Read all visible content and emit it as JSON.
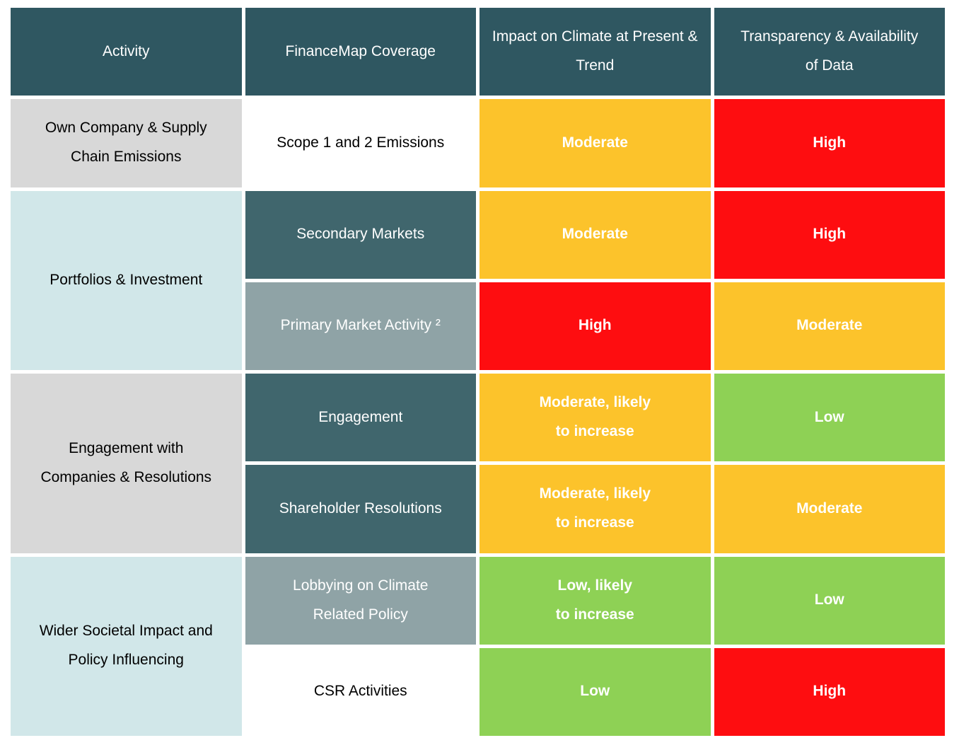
{
  "table": {
    "headers": [
      "Activity",
      "FinanceMap Coverage",
      "Impact on Climate at Present &\nTrend",
      "Transparency & Availability\nof Data"
    ],
    "groups": [
      {
        "activity": "Own Company & Supply\nChain Emissions",
        "rows": [
          {
            "coverage": "Scope 1 and 2 Emissions",
            "impact": "Moderate",
            "impact_level": "moderate",
            "transparency": "High",
            "transparency_level": "high"
          }
        ]
      },
      {
        "activity": "Portfolios & Investment",
        "rows": [
          {
            "coverage": "Secondary Markets",
            "impact": "Moderate",
            "impact_level": "moderate",
            "transparency": "High",
            "transparency_level": "high"
          },
          {
            "coverage": "Primary Market Activity ²",
            "impact": "High",
            "impact_level": "high",
            "transparency": "Moderate",
            "transparency_level": "moderate"
          }
        ]
      },
      {
        "activity": "Engagement with\nCompanies & Resolutions",
        "rows": [
          {
            "coverage": "Engagement",
            "impact": "Moderate, likely\nto increase",
            "impact_level": "moderate",
            "transparency": "Low",
            "transparency_level": "low"
          },
          {
            "coverage": "Shareholder Resolutions",
            "impact": "Moderate, likely\nto increase",
            "impact_level": "moderate",
            "transparency": "Moderate",
            "transparency_level": "moderate"
          }
        ]
      },
      {
        "activity": "Wider Societal Impact and\nPolicy Influencing",
        "rows": [
          {
            "coverage": "Lobbying on Climate\nRelated Policy",
            "impact": "Low, likely\nto increase",
            "impact_level": "low",
            "transparency": "Low",
            "transparency_level": "low"
          },
          {
            "coverage": "CSR Activities",
            "impact": "Low",
            "impact_level": "low",
            "transparency": "High",
            "transparency_level": "high"
          }
        ]
      }
    ]
  },
  "colors": {
    "header_teal": "#2F5761",
    "sub_row_teal": "#40666D",
    "muted_teal": "#8FA3A6",
    "activity_gray": "#D8D8D8",
    "activity_blue": "#D1E7E9",
    "rating_moderate_yellow": "#FCC32B",
    "rating_high_red": "#FE0D10",
    "rating_low_green": "#8ED155"
  }
}
